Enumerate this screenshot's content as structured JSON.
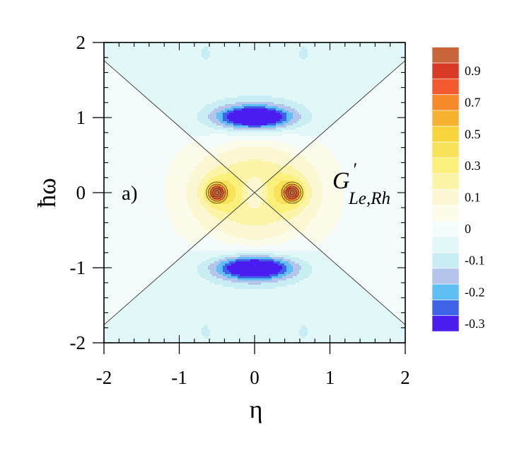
{
  "chart_data": {
    "type": "heatmap",
    "subtype": "filled-contour",
    "panel_label": "a)",
    "function_label": {
      "main": "G",
      "prime": "′",
      "subscript": "Le,Rh"
    },
    "xlabel": "η",
    "ylabel": "ħω",
    "xlim": [
      -2,
      2
    ],
    "ylim": [
      -2,
      2
    ],
    "x_ticks": [
      -2,
      -1,
      0,
      1,
      2
    ],
    "y_ticks": [
      -2,
      -1,
      0,
      1,
      2
    ],
    "x_tick_labels": [
      "-2",
      "-1",
      "0",
      "1",
      "2"
    ],
    "y_tick_labels": [
      "-2",
      "-1",
      "0",
      "1",
      "2"
    ],
    "grid": false,
    "colorbar": {
      "placement": "right",
      "levels": [
        {
          "lower": -0.3,
          "label": "-0.3",
          "color": "#4a1cf0"
        },
        {
          "lower": -0.25,
          "label": "",
          "color": "#3e63e6"
        },
        {
          "lower": -0.2,
          "label": "-0.2",
          "color": "#5fbff5"
        },
        {
          "lower": -0.15,
          "label": "",
          "color": "#b4c4ea"
        },
        {
          "lower": -0.1,
          "label": "-0.1",
          "color": "#c8eef4"
        },
        {
          "lower": -0.05,
          "label": "",
          "color": "#e2f7f8"
        },
        {
          "lower": 0.0,
          "label": "0",
          "color": "#f4fcfb"
        },
        {
          "lower": 0.05,
          "label": "",
          "color": "#fcfae8"
        },
        {
          "lower": 0.1,
          "label": "0.1",
          "color": "#fbf7d2"
        },
        {
          "lower": 0.2,
          "label": "",
          "color": "#fbf3a6"
        },
        {
          "lower": 0.3,
          "label": "0.3",
          "color": "#fbf07a"
        },
        {
          "lower": 0.4,
          "label": "",
          "color": "#f8e25a"
        },
        {
          "lower": 0.5,
          "label": "0.5",
          "color": "#f8d43c"
        },
        {
          "lower": 0.6,
          "label": "",
          "color": "#f6b22e"
        },
        {
          "lower": 0.7,
          "label": "0.7",
          "color": "#f6892a"
        },
        {
          "lower": 0.8,
          "label": "",
          "color": "#f05a2e"
        },
        {
          "lower": 0.9,
          "label": "0.9",
          "color": "#d83a26"
        },
        {
          "lower": 1.0,
          "label": "",
          "color": "#c8663a"
        }
      ]
    },
    "features": [
      {
        "kind": "maximum",
        "x": -0.5,
        "y": 0.0,
        "value": 1.0
      },
      {
        "kind": "maximum",
        "x": 0.5,
        "y": 0.0,
        "value": 1.0
      },
      {
        "kind": "minimum",
        "x": 0.0,
        "y": 1.0,
        "value": -0.3
      },
      {
        "kind": "minimum",
        "x": 0.0,
        "y": -1.0,
        "value": -0.3
      },
      {
        "kind": "local-minimum",
        "x": 0.0,
        "y": 0.0,
        "value": 0.1
      }
    ]
  }
}
